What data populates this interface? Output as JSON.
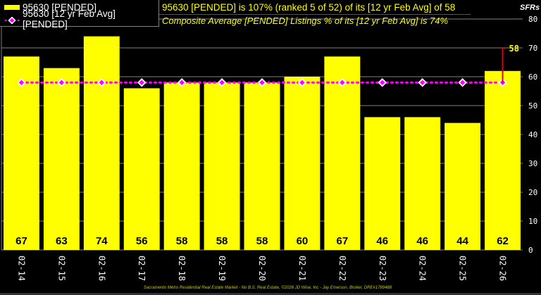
{
  "legend": {
    "series1_label": "95630 [PENDED]",
    "series2_label": "95630 [12 yr Feb Avg] [PENDED]"
  },
  "title": {
    "line1": "95630 [PENDED] is 107% (ranked 5 of 52) of its [12 yr Feb Avg] of 58",
    "line2": "Composite Average [PENDED] Listings % of its [12 yr Feb Avg] is 74%"
  },
  "unit_label": "SFRs",
  "footer": "Sacramento Metro Residential Real Estate Market - No B.S. Real Estate, ©2026 JD Wise, Inc - Jay Emerson, Broker, DRE#1789488",
  "colors": {
    "background": "#000000",
    "bar": "#ffff00",
    "avg_line": "#ff00ff",
    "avg_marker_outline": "#ffffff",
    "delta_line": "#e00000",
    "gridline": "#808080",
    "title_text": "#ffff00",
    "axis_text": "#ffffff"
  },
  "chart_data": {
    "type": "bar",
    "title": "95630 [PENDED] is 107% (ranked 5 of 52) of its [12 yr Feb Avg] of 58",
    "subtitle": "Composite Average [PENDED] Listings % of its [12 yr Feb Avg] is 74%",
    "xlabel": "",
    "ylabel": "SFRs",
    "ylim": [
      0,
      80
    ],
    "yticks": [
      0,
      10,
      20,
      30,
      40,
      50,
      60,
      70,
      80
    ],
    "y_axis_position": "right",
    "grid": true,
    "legend_position": "top-left",
    "categories": [
      "02-14",
      "02-15",
      "02-16",
      "02-17",
      "02-18",
      "02-19",
      "02-20",
      "02-21",
      "02-22",
      "02-23",
      "02-24",
      "02-25",
      "02-26"
    ],
    "series": [
      {
        "name": "95630 [PENDED]",
        "type": "bar",
        "values": [
          67,
          63,
          74,
          56,
          58,
          58,
          58,
          60,
          67,
          46,
          46,
          44,
          62
        ]
      },
      {
        "name": "95630 [12 yr Feb Avg] [PENDED]",
        "type": "line",
        "values": [
          58,
          58,
          58,
          58,
          58,
          58,
          58,
          58,
          58,
          58,
          58,
          58,
          58
        ]
      }
    ],
    "annotations": [
      {
        "text": "58",
        "x": "02-26",
        "y": 70,
        "note": "12 yr Feb Avg value label with red leader line"
      }
    ]
  }
}
